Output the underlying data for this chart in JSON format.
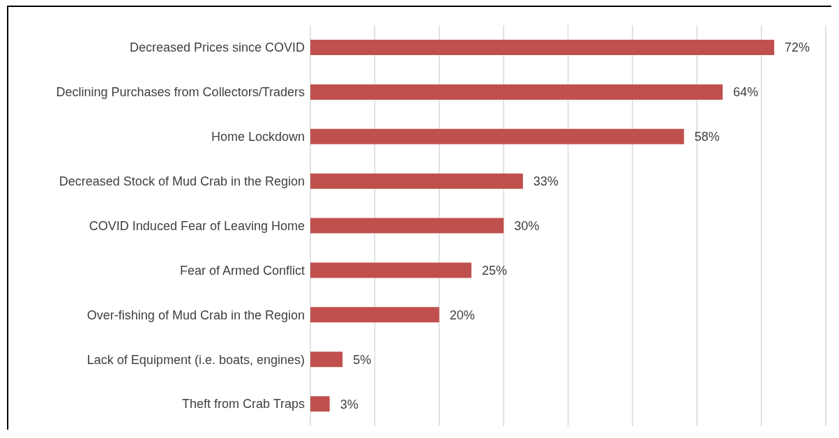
{
  "chart_data": {
    "type": "bar",
    "orientation": "horizontal",
    "categories": [
      "Decreased Prices since COVID",
      "Declining Purchases from Collectors/Traders",
      "Home Lockdown",
      "Decreased Stock of Mud Crab in the Region",
      "COVID Induced Fear of Leaving Home",
      "Fear of Armed Conflict",
      "Over-fishing of Mud Crab in the Region",
      "Lack of Equipment (i.e. boats, engines)",
      "Theft from Crab Traps"
    ],
    "values": [
      72,
      64,
      58,
      33,
      30,
      25,
      20,
      5,
      3
    ],
    "value_labels": [
      "72%",
      "64%",
      "58%",
      "33%",
      "30%",
      "25%",
      "20%",
      "5%",
      "3%"
    ],
    "color": "#c0504d",
    "grid": "x",
    "tick_labels": "y"
  }
}
